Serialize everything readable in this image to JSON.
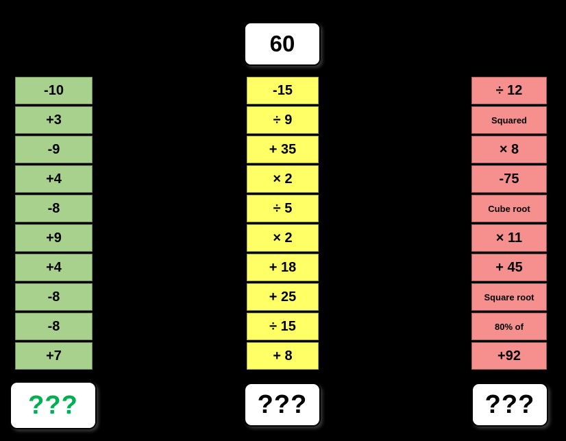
{
  "start": {
    "value": "60"
  },
  "columns": [
    {
      "color": "#a9d18e",
      "result": "???",
      "result_color": "#00b050",
      "cells": [
        "-10",
        "+3",
        "-9",
        "+4",
        "-8",
        "+9",
        "+4",
        "-8",
        "-8",
        "+7"
      ]
    },
    {
      "color": "#ffff66",
      "result": "???",
      "result_color": "#000000",
      "cells": [
        "-15",
        "÷ 9",
        "+ 35",
        "× 2",
        "÷ 5",
        "× 2",
        "+ 18",
        "+ 25",
        "÷ 15",
        "+ 8"
      ]
    },
    {
      "color": "#f5908e",
      "result": "???",
      "result_color": "#000000",
      "cells": [
        "÷ 12",
        "Squared",
        "× 8",
        "-75",
        "Cube root",
        "× 11",
        "+ 45",
        "Square root",
        "80% of",
        "+92"
      ]
    }
  ]
}
